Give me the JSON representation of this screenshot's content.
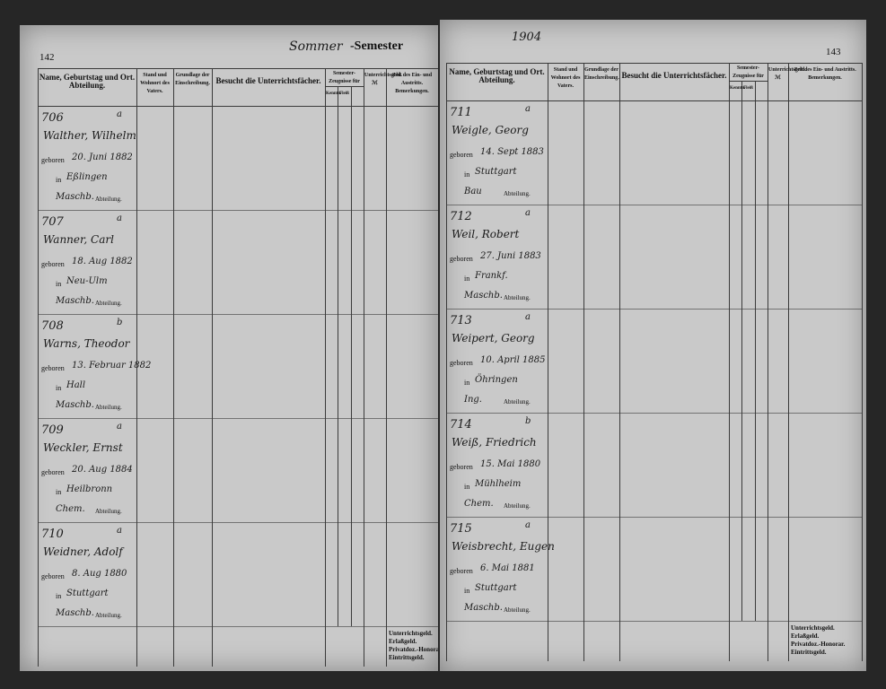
{
  "column_headers": {
    "name": "Name, Geburtstag und Ort. Abteilung.",
    "father": "Stand und Wohnort des Vaters.",
    "basis": "Grundlage der Einschreibung.",
    "subjects": "Besucht die Unterrichtsfächer.",
    "certificates": "Semester-Zeugnisse für",
    "knowledge": "Kenntn.",
    "diligence": "Fleiß",
    "fee": "Unterrichtsgeld. ℳ",
    "time": "Zeit des Ein- und Austritts. Bemerkungen."
  },
  "labels": {
    "born": "geboren",
    "in": "in",
    "division": "Abteilung."
  },
  "footer_labels": [
    "Unterrichtsgeld.",
    "Erlaßgeld.",
    "Privatdoz.-Honorar.",
    "Eintrittsgeld."
  ],
  "pages": [
    {
      "page_number": "142",
      "semester_heading": "Sommer",
      "semester_label": "-Semester",
      "entries": [
        {
          "number": "706",
          "class": "a",
          "name": "Walther, Wilhelm",
          "birth_date": "20. Juni 1882",
          "birth_place": "Eßlingen",
          "division": "Maschb."
        },
        {
          "number": "707",
          "class": "a",
          "name": "Wanner, Carl",
          "birth_date": "18. Aug 1882",
          "birth_place": "Neu-Ulm",
          "division": "Maschb."
        },
        {
          "number": "708",
          "class": "b",
          "name": "Warns, Theodor",
          "birth_date": "13. Februar 1882",
          "birth_place": "Hall",
          "division": "Maschb."
        },
        {
          "number": "709",
          "class": "a",
          "name": "Weckler, Ernst",
          "birth_date": "20. Aug 1884",
          "birth_place": "Heilbronn",
          "division": "Chem."
        },
        {
          "number": "710",
          "class": "a",
          "name": "Weidner, Adolf",
          "birth_date": "8. Aug 1880",
          "birth_place": "Stuttgart",
          "division": "Maschb."
        }
      ]
    },
    {
      "page_number": "143",
      "year": "1904",
      "entries": [
        {
          "number": "711",
          "class": "a",
          "name": "Weigle, Georg",
          "birth_date": "14. Sept 1883",
          "birth_place": "Stuttgart",
          "division": "Bau"
        },
        {
          "number": "712",
          "class": "a",
          "name": "Weil, Robert",
          "birth_date": "27. Juni 1883",
          "birth_place": "Frankf.",
          "division": "Maschb."
        },
        {
          "number": "713",
          "class": "a",
          "name": "Weipert, Georg",
          "birth_date": "10. April 1885",
          "birth_place": "Öhringen",
          "division": "Ing."
        },
        {
          "number": "714",
          "class": "b",
          "name": "Weiß, Friedrich",
          "birth_date": "15. Mai 1880",
          "birth_place": "Mühlheim",
          "division": "Chem."
        },
        {
          "number": "715",
          "class": "a",
          "name": "Weisbrecht, Eugen",
          "birth_date": "6. Mai 1881",
          "birth_place": "Stuttgart",
          "division": "Maschb."
        }
      ]
    }
  ]
}
